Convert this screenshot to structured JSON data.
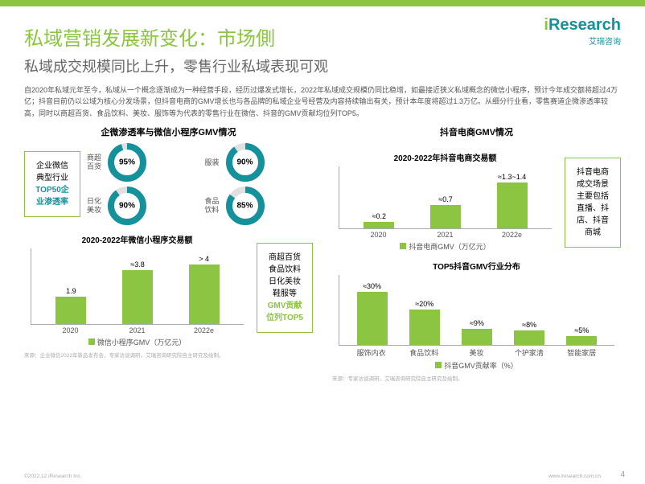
{
  "logo": {
    "brand": "Research",
    "brand_i": "i",
    "sub": "艾瑞咨询"
  },
  "title": {
    "main": "私域营销发展新变化：市场側",
    "sub": "私域成交规模同比上升，零售行业私域表现可观"
  },
  "body": "自2020年私域元年至今，私域从一个概念逐渐成为一种经营手段，经历过爆发式增长，2022年私域成交规模仍同比稳增，如最接近狭义私域概念的微信小程序，预计今年成交额将超过4万亿；抖音目前仍以公域为核心分发场景，但抖音电商的GMV增长也与各品牌的私域企业号经营及内容持续输出有关，预计本年度将超过1.3万亿。从细分行业看，零售赛道企微渗透率较高，同时以商超百货、食品饮料、美妆、服饰等为代表的零售行业在微信、抖音的GMV贡献均位列TOP5。",
  "wechat": {
    "header": "企微渗透率与微信小程序GMV情况",
    "box1": {
      "l1": "企业微信",
      "l2": "典型行业",
      "l3": "TOP50企",
      "l4": "业渗透率"
    },
    "donuts": [
      {
        "label": "商超百货",
        "val": 95,
        "txt": "95%"
      },
      {
        "label": "服装",
        "val": 90,
        "txt": "90%"
      },
      {
        "label": "日化美妆",
        "val": 90,
        "txt": "90%"
      },
      {
        "label": "食品饮料",
        "val": 85,
        "txt": "85%"
      }
    ],
    "colors": {
      "ring": "#14919b",
      "bg": "#e0e0e0"
    },
    "chart": {
      "title": "2020-2022年微信小程序交易额",
      "cats": [
        "2020",
        "2021",
        "2022e"
      ],
      "vals": [
        1.9,
        3.8,
        4.2
      ],
      "labels": [
        "1.9",
        "≈3.8",
        "> 4"
      ],
      "max": 4.5,
      "legend": "微信小程序GMV（万亿元）"
    },
    "box2": {
      "l1": "商超百货",
      "l2": "食品饮料",
      "l3": "日化美妆",
      "l4": "鞋服等",
      "l5": "GMV贡献",
      "l6": "位列TOP5"
    }
  },
  "douyin": {
    "header": "抖音电商GMV情况",
    "chart1": {
      "title": "2020-2022年抖音电商交易额",
      "cats": [
        "2020",
        "2021",
        "2022e"
      ],
      "vals": [
        0.2,
        0.7,
        1.35
      ],
      "labels": [
        "≈0.2",
        "≈0.7",
        "≈1.3~1.4"
      ],
      "max": 1.5,
      "legend": "抖音电商GMV（万亿元）"
    },
    "box": {
      "l1": "抖音电商",
      "l2": "成交场景",
      "l3": "主要包括",
      "l4": "直播、抖",
      "l5": "店、抖音",
      "l6": "商城"
    },
    "chart2": {
      "title": "TOP5抖音GMV行业分布",
      "cats": [
        "服饰内衣",
        "食品饮料",
        "美妆",
        "个护家清",
        "智能家居"
      ],
      "vals": [
        30,
        20,
        9,
        8,
        5
      ],
      "labels": [
        "≈30%",
        "≈20%",
        "≈9%",
        "≈8%",
        "≈5%"
      ],
      "max": 33,
      "legend": "抖音GMV贡献率（%）"
    }
  },
  "source": "来源：企业微信2022年新品发布会，专家访谈调研，艾瑞咨询研究院自主研究及绘制。",
  "source2": "来源：专家访谈调研，艾瑞咨询研究院自主研究及绘制。",
  "footer": {
    "l": "©2022.12 iResearch Inc.",
    "r": "www.iresearch.com.cn",
    "page": "4"
  }
}
